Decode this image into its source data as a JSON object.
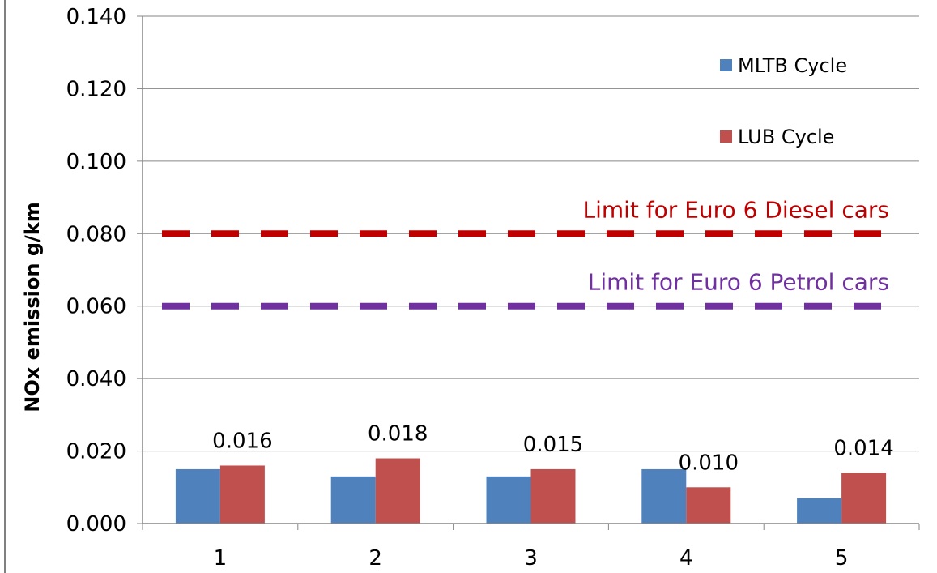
{
  "chart_data": {
    "type": "bar",
    "categories": [
      "1",
      "2",
      "3",
      "4",
      "5"
    ],
    "series": [
      {
        "name": "MLTB Cycle",
        "color": "#4F81BD",
        "values": [
          0.015,
          0.013,
          0.013,
          0.015,
          0.007
        ]
      },
      {
        "name": "LUB Cycle",
        "color": "#C0504D",
        "values": [
          0.016,
          0.018,
          0.015,
          0.01,
          0.014
        ],
        "data_labels": [
          "0.016",
          "0.018",
          "0.015",
          "0.010",
          "0.014"
        ]
      }
    ],
    "ylabel": "NOx emission g/km",
    "xlabel": "",
    "ylim": [
      0,
      0.14
    ],
    "yticks": [
      "0.000",
      "0.020",
      "0.040",
      "0.060",
      "0.080",
      "0.100",
      "0.120",
      "0.140"
    ],
    "grid": true,
    "legend_position": "top-right",
    "reference_lines": [
      {
        "label": "Limit for Euro 6 Diesel cars",
        "value": 0.08,
        "color": "#C00000",
        "style": "dashed"
      },
      {
        "label": "Limit for Euro 6 Petrol cars",
        "value": 0.06,
        "color": "#7030A0",
        "style": "dashed"
      }
    ]
  }
}
